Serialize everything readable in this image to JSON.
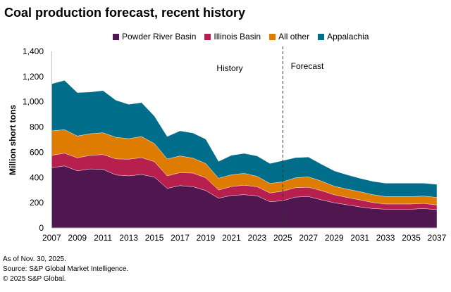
{
  "chart_data": {
    "type": "area",
    "stacked": true,
    "title": "Coal production forecast, recent history",
    "ylabel": "Million short tons",
    "xlabel": "",
    "ylim": [
      0,
      1400
    ],
    "yticks": [
      0,
      200,
      400,
      600,
      800,
      1000,
      1200,
      1400
    ],
    "ytick_labels": [
      "0",
      "200",
      "400",
      "600",
      "800",
      "1,000",
      "1,200",
      "1,400"
    ],
    "xticks": [
      2007,
      2009,
      2011,
      2013,
      2015,
      2017,
      2019,
      2021,
      2023,
      2025,
      2027,
      2029,
      2031,
      2033,
      2035,
      2037
    ],
    "grid": false,
    "legend_position": "top",
    "x": [
      2007,
      2008,
      2009,
      2010,
      2011,
      2012,
      2013,
      2014,
      2015,
      2016,
      2017,
      2018,
      2019,
      2020,
      2021,
      2022,
      2023,
      2024,
      2025,
      2026,
      2027,
      2028,
      2029,
      2030,
      2031,
      2032,
      2033,
      2034,
      2035,
      2036,
      2037
    ],
    "series": [
      {
        "name": "Powder River Basin",
        "color": "#4f1650",
        "values": [
          478,
          492,
          453,
          468,
          465,
          420,
          413,
          424,
          403,
          314,
          336,
          327,
          297,
          236,
          258,
          264,
          255,
          208,
          216,
          245,
          249,
          223,
          200,
          184,
          167,
          154,
          149,
          149,
          149,
          154,
          145
        ]
      },
      {
        "name": "Illinois Basin",
        "color": "#b71f4e",
        "values": [
          98,
          101,
          103,
          108,
          117,
          128,
          132,
          134,
          123,
          99,
          103,
          108,
          101,
          65,
          71,
          75,
          72,
          69,
          76,
          75,
          74,
          73,
          64,
          58,
          56,
          48,
          41,
          41,
          41,
          41,
          37
        ]
      },
      {
        "name": "All other",
        "color": "#dd7c00",
        "values": [
          194,
          186,
          173,
          171,
          173,
          171,
          163,
          167,
          143,
          134,
          132,
          119,
          113,
          93,
          93,
          94,
          82,
          76,
          74,
          78,
          82,
          76,
          67,
          66,
          65,
          62,
          59,
          59,
          59,
          58,
          60
        ]
      },
      {
        "name": "Appalachia",
        "color": "#006e8a",
        "values": [
          373,
          391,
          344,
          331,
          334,
          294,
          272,
          269,
          218,
          178,
          199,
          199,
          193,
          134,
          154,
          158,
          162,
          158,
          168,
          160,
          157,
          134,
          122,
          114,
          106,
          106,
          106,
          106,
          106,
          102,
          104
        ]
      }
    ],
    "annotations": [
      {
        "text": "History"
      },
      {
        "text": "Forecast"
      }
    ],
    "divider_at": 2025
  },
  "footnotes": [
    "As of Nov. 30, 2025.",
    "Source: S&P Global Market Intelligence.",
    "© 2025 S&P Global."
  ]
}
